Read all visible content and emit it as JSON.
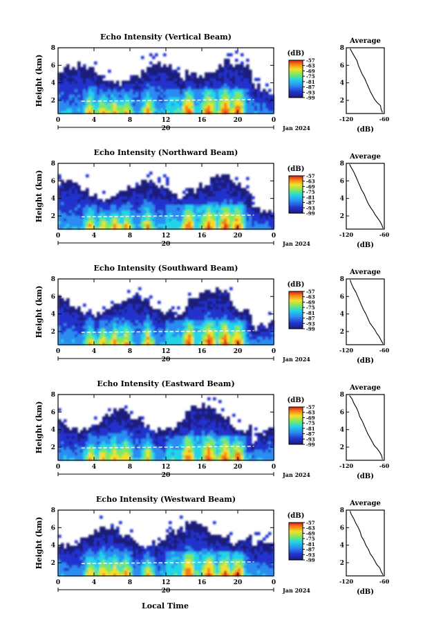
{
  "common": {
    "xlabel": "Local Time",
    "date_label": "Jan 2024",
    "day_label": "20",
    "colorbar_unit": "(dB)",
    "avg_title": "Average",
    "avg_xlabel": "(dB)",
    "ylabel": "Height (km)"
  },
  "chart_data": [
    {
      "type": "heatmap",
      "title": "Echo Intensity (Vertical Beam)",
      "ylabel": "Height (km)",
      "x_ticks": [
        "0",
        "4",
        "8",
        "12",
        "16",
        "20",
        "0"
      ],
      "y_ticks": [
        "2",
        "4",
        "6",
        "8"
      ],
      "xlim": [
        0,
        24
      ],
      "ylim": [
        0.5,
        8
      ],
      "colorbar": {
        "ticks": [
          "-57",
          "-63",
          "-69",
          "-75",
          "-81",
          "-87",
          "-93",
          "-99"
        ],
        "range": [
          -99,
          -57
        ]
      },
      "average_profile": {
        "title": "Average",
        "xlabel": "(dB)",
        "x_ticks": [
          "-120",
          "-60"
        ],
        "xlim": [
          -120,
          -60
        ],
        "y_ticks": [
          "2",
          "4",
          "6",
          "8"
        ],
        "height": [
          0.6,
          1.0,
          1.4,
          1.8,
          2.2,
          2.6,
          3.0,
          3.5,
          4.0,
          4.5,
          5.0,
          5.5,
          6.0,
          6.5,
          7.0,
          7.5,
          7.9
        ],
        "db": [
          -63,
          -65,
          -66,
          -72,
          -76,
          -79,
          -82,
          -85,
          -88,
          -91,
          -95,
          -98,
          -101,
          -103,
          -107,
          -111,
          -114
        ]
      }
    },
    {
      "type": "heatmap",
      "title": "Echo Intensity (Northward Beam)",
      "ylabel": "Height (km)",
      "x_ticks": [
        "0",
        "4",
        "8",
        "12",
        "16",
        "20",
        "0"
      ],
      "y_ticks": [
        "2",
        "4",
        "6",
        "8"
      ],
      "xlim": [
        0,
        24
      ],
      "ylim": [
        0.5,
        8
      ],
      "colorbar": {
        "ticks": [
          "-57",
          "-63",
          "-69",
          "-75",
          "-81",
          "-87",
          "-93",
          "-99"
        ],
        "range": [
          -99,
          -57
        ]
      },
      "average_profile": {
        "title": "Average",
        "xlabel": "(dB)",
        "x_ticks": [
          "-120",
          "-60"
        ],
        "xlim": [
          -120,
          -60
        ],
        "y_ticks": [
          "2",
          "4",
          "6",
          "8"
        ],
        "height": [
          0.6,
          1.0,
          1.4,
          1.8,
          2.2,
          2.6,
          3.0,
          3.5,
          4.0,
          4.5,
          5.0,
          5.5,
          6.0,
          6.5,
          7.0,
          7.5,
          7.9
        ],
        "db": [
          -62,
          -64,
          -67,
          -71,
          -75,
          -78,
          -82,
          -86,
          -89,
          -92,
          -96,
          -99,
          -102,
          -105,
          -108,
          -112,
          -115
        ]
      }
    },
    {
      "type": "heatmap",
      "title": "Echo Intensity (Southward Beam)",
      "ylabel": "Height (km)",
      "x_ticks": [
        "0",
        "4",
        "8",
        "12",
        "16",
        "20",
        "0"
      ],
      "y_ticks": [
        "2",
        "4",
        "6",
        "8"
      ],
      "xlim": [
        0,
        24
      ],
      "ylim": [
        0.5,
        8
      ],
      "colorbar": {
        "ticks": [
          "-57",
          "-63",
          "-69",
          "-75",
          "-81",
          "-87",
          "-93",
          "-99"
        ],
        "range": [
          -99,
          -57
        ]
      },
      "average_profile": {
        "title": "Average",
        "xlabel": "(dB)",
        "x_ticks": [
          "-120",
          "-60"
        ],
        "xlim": [
          -120,
          -60
        ],
        "y_ticks": [
          "2",
          "4",
          "6",
          "8"
        ],
        "height": [
          0.6,
          1.0,
          1.4,
          1.8,
          2.2,
          2.6,
          3.0,
          3.5,
          4.0,
          4.5,
          5.0,
          5.5,
          6.0,
          6.5,
          7.0,
          7.5,
          7.9
        ],
        "db": [
          -62,
          -65,
          -68,
          -72,
          -75,
          -79,
          -83,
          -86,
          -89,
          -93,
          -96,
          -99,
          -102,
          -105,
          -109,
          -112,
          -114
        ]
      }
    },
    {
      "type": "heatmap",
      "title": "Echo Intensity (Eastward Beam)",
      "ylabel": "Height (km)",
      "x_ticks": [
        "0",
        "4",
        "8",
        "12",
        "16",
        "20",
        "0"
      ],
      "y_ticks": [
        "2",
        "4",
        "6",
        "8"
      ],
      "xlim": [
        0,
        24
      ],
      "ylim": [
        0.5,
        8
      ],
      "colorbar": {
        "ticks": [
          "-57",
          "-63",
          "-69",
          "-75",
          "-81",
          "-87",
          "-93",
          "-99"
        ],
        "range": [
          -99,
          -57
        ]
      },
      "average_profile": {
        "title": "Average",
        "xlabel": "(dB)",
        "x_ticks": [
          "-120",
          "-60"
        ],
        "xlim": [
          -120,
          -60
        ],
        "y_ticks": [
          "2",
          "4",
          "6",
          "8"
        ],
        "height": [
          0.6,
          1.0,
          1.4,
          1.8,
          2.2,
          2.6,
          3.0,
          3.5,
          4.0,
          4.5,
          5.0,
          5.5,
          6.0,
          6.5,
          7.0,
          7.5,
          7.9
        ],
        "db": [
          -63,
          -64,
          -67,
          -71,
          -76,
          -79,
          -82,
          -86,
          -89,
          -92,
          -95,
          -99,
          -101,
          -104,
          -108,
          -111,
          -115
        ]
      }
    },
    {
      "type": "heatmap",
      "title": "Echo Intensity (Westward Beam)",
      "ylabel": "Height (km)",
      "x_ticks": [
        "0",
        "4",
        "8",
        "12",
        "16",
        "20",
        "0"
      ],
      "y_ticks": [
        "2",
        "4",
        "6",
        "8"
      ],
      "xlim": [
        0,
        24
      ],
      "ylim": [
        0.5,
        8
      ],
      "colorbar": {
        "ticks": [
          "-57",
          "-63",
          "-69",
          "-75",
          "-81",
          "-87",
          "-93",
          "-99"
        ],
        "range": [
          -99,
          -57
        ]
      },
      "average_profile": {
        "title": "Average",
        "xlabel": "(dB)",
        "x_ticks": [
          "-120",
          "-60"
        ],
        "xlim": [
          -120,
          -60
        ],
        "y_ticks": [
          "2",
          "4",
          "6",
          "8"
        ],
        "height": [
          0.6,
          1.0,
          1.4,
          1.8,
          2.2,
          2.6,
          3.0,
          3.5,
          4.0,
          4.5,
          5.0,
          5.5,
          6.0,
          6.5,
          7.0,
          7.5,
          7.9
        ],
        "db": [
          -62,
          -65,
          -67,
          -72,
          -75,
          -78,
          -82,
          -85,
          -89,
          -92,
          -96,
          -98,
          -101,
          -105,
          -108,
          -112,
          -114
        ]
      }
    }
  ]
}
